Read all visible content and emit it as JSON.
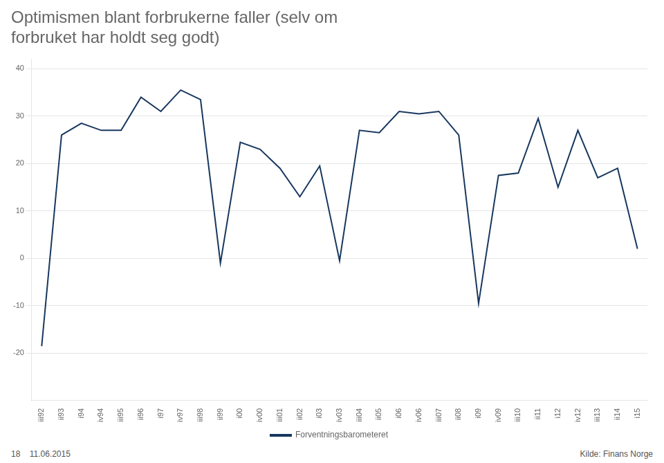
{
  "chart_data": {
    "type": "line",
    "title": "Optimismen blant forbrukerne faller (selv om\nforbruket har holdt seg godt)",
    "categories": [
      "iii92",
      "ii93",
      "i94",
      "iv94",
      "iii95",
      "ii96",
      "i97",
      "iv97",
      "iii98",
      "ii99",
      "i00",
      "iv00",
      "iii01",
      "ii02",
      "i03",
      "iv03",
      "iii04",
      "ii05",
      "i06",
      "iv06",
      "iii07",
      "ii08",
      "i09",
      "iv09",
      "iii10",
      "ii11",
      "i12",
      "iv12",
      "iii13",
      "ii14",
      "i15"
    ],
    "series": [
      {
        "name": "Forventningsbarometeret",
        "color": "#17375e",
        "values": [
          -18.5,
          26.0,
          28.5,
          27.0,
          27.0,
          34.0,
          31.0,
          35.5,
          33.5,
          -1.0,
          24.5,
          23.0,
          19.0,
          13.0,
          19.5,
          -0.5,
          27.0,
          26.5,
          31.0,
          30.5,
          31.0,
          26.0,
          -9.5,
          17.5,
          18.0,
          29.5,
          15.0,
          27.0,
          17.0,
          19.0,
          2.0
        ]
      }
    ],
    "ylim": [
      -30,
      42
    ],
    "yticks": [
      -20,
      -10,
      0,
      10,
      20,
      30,
      40
    ],
    "grid": true,
    "legend": "bottom",
    "annotations": [
      "18    11.06.2015",
      "Kilde: Finans Norge"
    ]
  }
}
